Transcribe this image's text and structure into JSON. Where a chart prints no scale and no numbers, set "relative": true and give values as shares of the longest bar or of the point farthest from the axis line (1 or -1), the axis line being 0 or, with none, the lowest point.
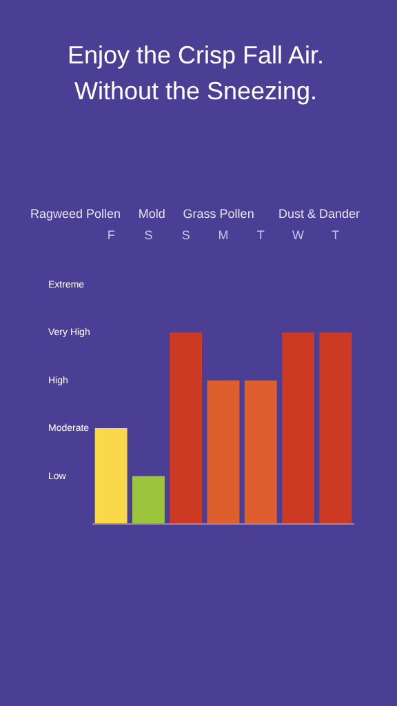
{
  "chart_data": {
    "type": "bar",
    "title": "Enjoy the Crisp Fall Air.\nWithout the Sneezing.",
    "annotations": [
      "Ragweed Pollen",
      "Mold",
      "Grass Pollen",
      "Dust & Dander",
      "Low",
      "Moderate",
      "High",
      "Very High",
      "Extreme"
    ],
    "categories": [
      "F",
      "S",
      "S",
      "M",
      "T",
      "W",
      "T"
    ],
    "values": [
      0.5,
      0.25,
      1,
      0.75,
      0.75,
      1,
      1
    ],
    "colors": [
      "#f9d84a",
      "#9cc43c",
      "#cc3a24",
      "#de5e2e",
      "#de5e2e",
      "#cc3a24",
      "#cc3a24"
    ],
    "relative": true,
    "grid": false
  }
}
